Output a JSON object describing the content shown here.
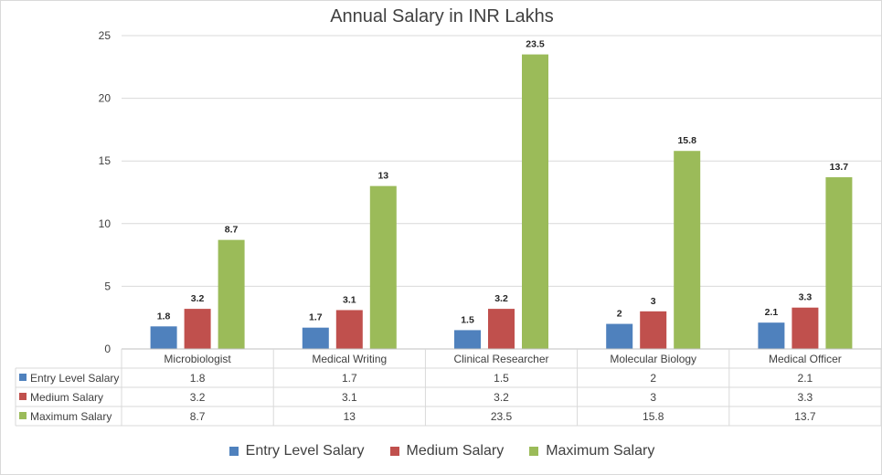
{
  "chart_data": {
    "type": "bar",
    "title": "Annual Salary in INR Lakhs",
    "categories": [
      "Microbiologist",
      "Medical Writing",
      "Clinical Researcher",
      "Molecular Biology",
      "Medical Officer"
    ],
    "series": [
      {
        "name": "Entry Level Salary",
        "color": "#4f81bd",
        "values": [
          1.8,
          1.7,
          1.5,
          2,
          2.1
        ],
        "labels": [
          "1.8",
          "1.7",
          "1.5",
          "2",
          "2.1"
        ]
      },
      {
        "name": "Medium Salary",
        "color": "#c0504d",
        "values": [
          3.2,
          3.1,
          3.2,
          3,
          3.3
        ],
        "labels": [
          "3.2",
          "3.1",
          "3.2",
          "3",
          "3.3"
        ]
      },
      {
        "name": "Maximum Salary",
        "color": "#9bbb59",
        "values": [
          8.7,
          13,
          23.5,
          15.8,
          13.7
        ],
        "labels": [
          "8.7",
          "13",
          "23.5",
          "15.8",
          "13.7"
        ]
      }
    ],
    "ylim": [
      0,
      25
    ],
    "yticks": [
      "0",
      "5",
      "10",
      "15",
      "20",
      "25"
    ],
    "grid": true,
    "legend": "bottom",
    "data_table": true
  }
}
